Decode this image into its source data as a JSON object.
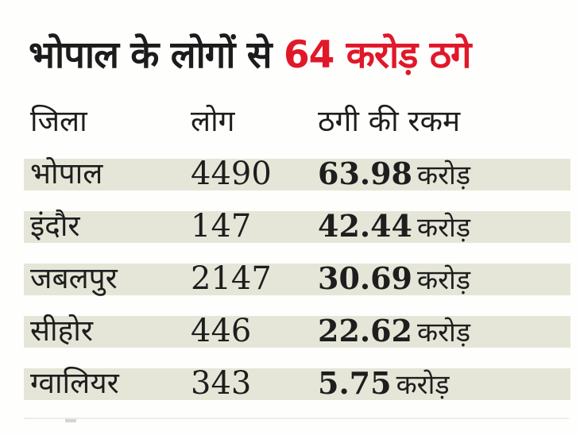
{
  "headline": {
    "black_part": "भोपाल के लोगों से",
    "red_part": "64 करोड़ ठगे"
  },
  "colors": {
    "headline_red": "#e0182a",
    "row_band": "#e5e6d8",
    "text": "#1e1e1e"
  },
  "table": {
    "columns": [
      "जिला",
      "लोग",
      "ठगी की रकम"
    ],
    "rows": [
      {
        "district": "भोपाल",
        "people": "4490",
        "amount": "63.98",
        "unit": "करोड़"
      },
      {
        "district": "इंदौर",
        "people": "147",
        "amount": "42.44",
        "unit": "करोड़"
      },
      {
        "district": "जबलपुर",
        "people": "2147",
        "amount": "30.69",
        "unit": "करोड़"
      },
      {
        "district": "सीहोर",
        "people": "446",
        "amount": "22.62",
        "unit": "करोड़"
      },
      {
        "district": "ग्वालियर",
        "people": "343",
        "amount": "5.75",
        "unit": "करोड़"
      }
    ]
  }
}
